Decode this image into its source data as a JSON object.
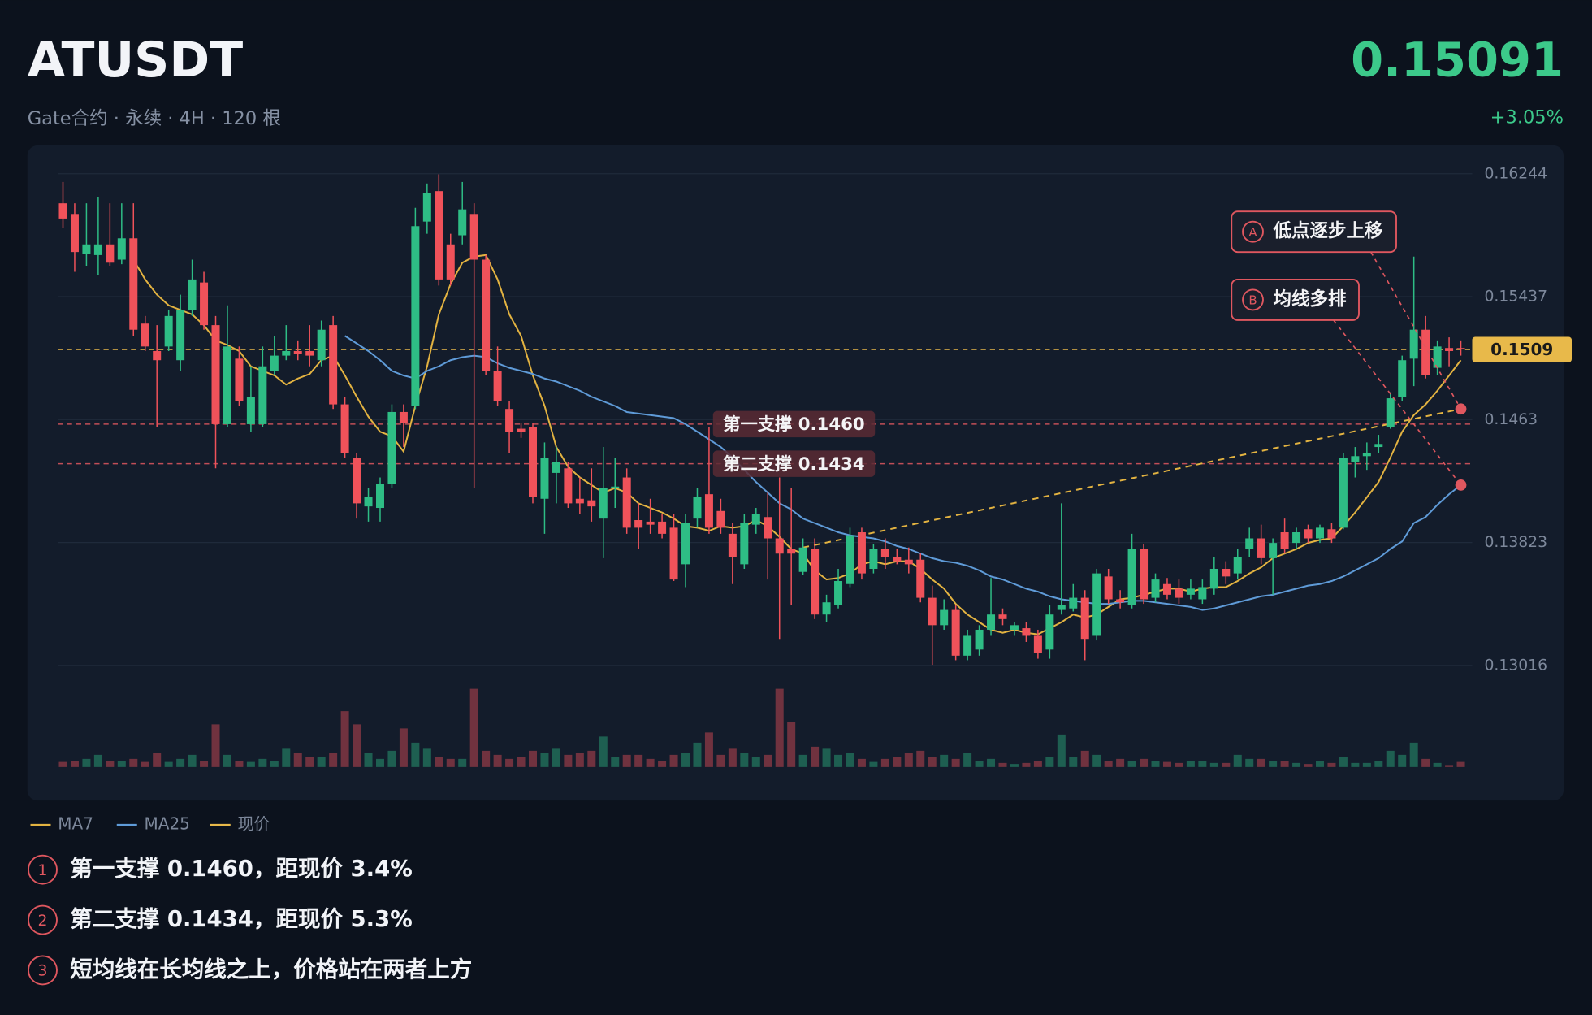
{
  "header": {
    "title": "ATUSDT",
    "subtitle": "Gate合约 · 永续 · 4H · 120 根",
    "price": "0.15091",
    "change": "+3.05%"
  },
  "chart_data": {
    "type": "candlestick",
    "ylim": [
      0.12949,
      0.16317
    ],
    "yticks": [
      0.16244,
      0.15437,
      0.1463,
      0.13823,
      0.13016
    ],
    "grid": true,
    "up_color": "#2ebd85",
    "down_color": "#f0525a",
    "open": [
      0.1605,
      0.1598,
      0.1572,
      0.1571,
      0.1578,
      0.1568,
      0.1582,
      0.1526,
      0.1508,
      0.1511,
      0.1502,
      0.1535,
      0.1553,
      0.1525,
      0.146,
      0.1503,
      0.146,
      0.146,
      0.1495,
      0.1505,
      0.1508,
      0.1508,
      0.1502,
      0.1525,
      0.1473,
      0.1438,
      0.1406,
      0.1405,
      0.1421,
      0.1468,
      0.1472,
      0.1593,
      0.1613,
      0.1578,
      0.1584,
      0.1598,
      0.1568,
      0.1495,
      0.147,
      0.1457,
      0.1458,
      0.1411,
      0.1428,
      0.1431,
      0.1411,
      0.141,
      0.1398,
      0.1418,
      0.1425,
      0.1397,
      0.1396,
      0.1396,
      0.1392,
      0.1368,
      0.1398,
      0.1414,
      0.1403,
      0.1388,
      0.1368,
      0.1394,
      0.1399,
      0.1385,
      0.1378,
      0.1363,
      0.1378,
      0.1335,
      0.1341,
      0.1355,
      0.1389,
      0.1365,
      0.1378,
      0.1373,
      0.1371,
      0.1371,
      0.1346,
      0.1328,
      0.1338,
      0.1308,
      0.1312,
      0.1325,
      0.1335,
      0.1325,
      0.1326,
      0.1321,
      0.1312,
      0.1338,
      0.1339,
      0.1346,
      0.1321,
      0.136,
      0.1345,
      0.1341,
      0.1378,
      0.1346,
      0.1355,
      0.1352,
      0.1348,
      0.1345,
      0.1352,
      0.1365,
      0.1362,
      0.1378,
      0.1385,
      0.1372,
      0.1389,
      0.1382,
      0.1391,
      0.1385,
      0.1391,
      0.1392,
      0.1435,
      0.1439,
      0.1445,
      0.1458,
      0.1478,
      0.1503,
      0.1522,
      0.1497,
      0.151,
      0.151
    ],
    "close": [
      0.1595,
      0.1573,
      0.1578,
      0.1578,
      0.1566,
      0.1582,
      0.1522,
      0.1511,
      0.1502,
      0.1531,
      0.1535,
      0.1555,
      0.1525,
      0.146,
      0.1511,
      0.1475,
      0.1478,
      0.1498,
      0.1505,
      0.1508,
      0.1506,
      0.1505,
      0.1522,
      0.1473,
      0.1441,
      0.1408,
      0.1412,
      0.1421,
      0.1468,
      0.1461,
      0.159,
      0.1612,
      0.1555,
      0.1555,
      0.1601,
      0.1568,
      0.1495,
      0.1475,
      0.1455,
      0.1455,
      0.1412,
      0.1438,
      0.1435,
      0.1408,
      0.1408,
      0.1406,
      0.1418,
      0.1419,
      0.1392,
      0.1392,
      0.1394,
      0.1388,
      0.1358,
      0.1395,
      0.1412,
      0.1392,
      0.1392,
      0.1373,
      0.1395,
      0.1401,
      0.1385,
      0.1375,
      0.1375,
      0.1379,
      0.1335,
      0.1343,
      0.1357,
      0.1387,
      0.1362,
      0.1378,
      0.1373,
      0.137,
      0.1368,
      0.1346,
      0.1328,
      0.1338,
      0.1308,
      0.1321,
      0.1325,
      0.1335,
      0.1332,
      0.1328,
      0.1321,
      0.131,
      0.1335,
      0.1341,
      0.1346,
      0.1319,
      0.1362,
      0.1345,
      0.1343,
      0.1378,
      0.1345,
      0.1358,
      0.1348,
      0.1346,
      0.1352,
      0.1353,
      0.1365,
      0.136,
      0.1373,
      0.1385,
      0.1372,
      0.1382,
      0.1378,
      0.1389,
      0.1385,
      0.1392,
      0.1385,
      0.1438,
      0.1439,
      0.1441,
      0.1447,
      0.1477,
      0.1502,
      0.1522,
      0.1492,
      0.1511,
      0.1508,
      0.15091
    ],
    "high": [
      0.1619,
      0.1605,
      0.1605,
      0.1609,
      0.1605,
      0.1605,
      0.1605,
      0.1531,
      0.1525,
      0.1535,
      0.1545,
      0.1568,
      0.156,
      0.1531,
      0.1538,
      0.1511,
      0.1498,
      0.1511,
      0.1518,
      0.1525,
      0.1515,
      0.1525,
      0.1528,
      0.1531,
      0.1478,
      0.1441,
      0.1418,
      0.1425,
      0.1473,
      0.1473,
      0.1602,
      0.1618,
      0.1624,
      0.1585,
      0.1619,
      0.1605,
      0.1571,
      0.1511,
      0.1475,
      0.1461,
      0.1461,
      0.1448,
      0.1445,
      0.1435,
      0.1425,
      0.1431,
      0.1445,
      0.1438,
      0.1431,
      0.1408,
      0.1411,
      0.1401,
      0.1401,
      0.1401,
      0.1418,
      0.1458,
      0.1411,
      0.1395,
      0.1401,
      0.1405,
      0.1415,
      0.1425,
      0.1418,
      0.1385,
      0.1385,
      0.1348,
      0.1365,
      0.1392,
      0.1392,
      0.1381,
      0.1385,
      0.1378,
      0.1379,
      0.1375,
      0.1354,
      0.1345,
      0.1341,
      0.1325,
      0.1328,
      0.1359,
      0.1339,
      0.133,
      0.133,
      0.1325,
      0.1341,
      0.1408,
      0.1355,
      0.1351,
      0.1365,
      0.1365,
      0.1351,
      0.1388,
      0.1381,
      0.1362,
      0.1359,
      0.1358,
      0.1358,
      0.1358,
      0.1373,
      0.137,
      0.1378,
      0.1392,
      0.1394,
      0.1385,
      0.1398,
      0.1392,
      0.1394,
      0.1394,
      0.1395,
      0.1441,
      0.1445,
      0.1448,
      0.1453,
      0.1481,
      0.1505,
      0.157,
      0.1531,
      0.1515,
      0.1517,
      0.1515
    ],
    "low": [
      0.1589,
      0.156,
      0.1564,
      0.1558,
      0.1564,
      0.1565,
      0.1518,
      0.1508,
      0.1458,
      0.1508,
      0.1495,
      0.1531,
      0.1522,
      0.1431,
      0.1458,
      0.1472,
      0.1455,
      0.1458,
      0.1492,
      0.1502,
      0.1502,
      0.1498,
      0.1498,
      0.147,
      0.1438,
      0.1398,
      0.1396,
      0.1396,
      0.1418,
      0.1445,
      0.147,
      0.1585,
      0.1551,
      0.1551,
      0.1578,
      0.1418,
      0.1492,
      0.1472,
      0.1441,
      0.1451,
      0.1408,
      0.1388,
      0.1408,
      0.1405,
      0.1401,
      0.1396,
      0.1372,
      0.1405,
      0.1388,
      0.1378,
      0.1388,
      0.1385,
      0.1357,
      0.1353,
      0.1392,
      0.1388,
      0.1388,
      0.1355,
      0.1365,
      0.1388,
      0.1358,
      0.1319,
      0.1341,
      0.1361,
      0.1332,
      0.133,
      0.1339,
      0.1353,
      0.1358,
      0.1362,
      0.1365,
      0.1368,
      0.1362,
      0.1343,
      0.1302,
      0.1325,
      0.1305,
      0.1305,
      0.1308,
      0.1321,
      0.1328,
      0.1321,
      0.1317,
      0.1306,
      0.1306,
      0.1335,
      0.1337,
      0.1305,
      0.1318,
      0.1342,
      0.1339,
      0.1339,
      0.1342,
      0.1343,
      0.1345,
      0.1342,
      0.1345,
      0.1342,
      0.1348,
      0.1355,
      0.1358,
      0.1373,
      0.1368,
      0.1348,
      0.1375,
      0.1378,
      0.1382,
      0.1382,
      0.1382,
      0.1391,
      0.1425,
      0.143,
      0.1441,
      0.1457,
      0.1475,
      0.1485,
      0.149,
      0.1492,
      0.1498,
      0.1505
    ],
    "volume": [
      5,
      6,
      8,
      12,
      6,
      6,
      8,
      5,
      14,
      5,
      8,
      12,
      6,
      42,
      12,
      6,
      5,
      8,
      6,
      18,
      14,
      10,
      10,
      14,
      55,
      42,
      14,
      8,
      16,
      38,
      24,
      18,
      10,
      8,
      8,
      77,
      16,
      12,
      8,
      10,
      16,
      14,
      18,
      12,
      14,
      16,
      30,
      10,
      12,
      12,
      8,
      6,
      12,
      14,
      24,
      34,
      12,
      18,
      14,
      10,
      12,
      77,
      44,
      12,
      20,
      18,
      12,
      14,
      8,
      5,
      8,
      10,
      14,
      16,
      10,
      12,
      8,
      14,
      6,
      8,
      4,
      3,
      4,
      6,
      10,
      32,
      10,
      16,
      12,
      6,
      8,
      6,
      8,
      6,
      5,
      4,
      6,
      6,
      4,
      4,
      12,
      8,
      8,
      6,
      6,
      4,
      3,
      6,
      4,
      10,
      4,
      4,
      6,
      16,
      12,
      24,
      8,
      4,
      2,
      5
    ],
    "series": [
      {
        "name": "MA7",
        "color": "#e3b341",
        "values": [
          null,
          null,
          null,
          null,
          null,
          null,
          0.1568,
          0.1555,
          0.1545,
          0.1538,
          0.1535,
          0.1532,
          0.1525,
          0.1515,
          0.1512,
          0.1508,
          0.1498,
          0.1495,
          0.1492,
          0.1486,
          0.149,
          0.1493,
          0.1502,
          0.1505,
          0.1492,
          0.1478,
          0.1465,
          0.1455,
          0.1452,
          0.1442,
          0.1472,
          0.1498,
          0.1532,
          0.1552,
          0.1566,
          0.157,
          0.1571,
          0.1555,
          0.1532,
          0.1518,
          0.1492,
          0.1472,
          0.1445,
          0.1432,
          0.1425,
          0.142,
          0.1415,
          0.1418,
          0.1415,
          0.1408,
          0.1405,
          0.1402,
          0.1398,
          0.1393,
          0.1392,
          0.139,
          0.1393,
          0.1392,
          0.1393,
          0.1397,
          0.1393,
          0.1386,
          0.1378,
          0.1375,
          0.1364,
          0.1358,
          0.1359,
          0.1362,
          0.1368,
          0.137,
          0.1368,
          0.137,
          0.137,
          0.1365,
          0.1358,
          0.1352,
          0.1342,
          0.1335,
          0.133,
          0.1325,
          0.1323,
          0.1325,
          0.1323,
          0.1322,
          0.1326,
          0.133,
          0.1335,
          0.1333,
          0.1335,
          0.134,
          0.1345,
          0.1346,
          0.1348,
          0.135,
          0.1352,
          0.1352,
          0.135,
          0.1352,
          0.1353,
          0.1353,
          0.1357,
          0.1362,
          0.1366,
          0.1372,
          0.1375,
          0.1378,
          0.1382,
          0.1384,
          0.1385,
          0.1393,
          0.1402,
          0.1412,
          0.1422,
          0.1438,
          0.1455,
          0.1466,
          0.1473,
          0.1482,
          0.1492,
          0.1502
        ]
      },
      {
        "name": "MA25",
        "color": "#5f9bd8",
        "values": [
          null,
          null,
          null,
          null,
          null,
          null,
          null,
          null,
          null,
          null,
          null,
          null,
          null,
          null,
          null,
          null,
          null,
          null,
          null,
          null,
          null,
          null,
          null,
          null,
          0.1518,
          0.1513,
          0.1508,
          0.1502,
          0.1495,
          0.1492,
          0.149,
          0.1495,
          0.1498,
          0.1502,
          0.1504,
          0.1505,
          0.1504,
          0.15,
          0.1497,
          0.1495,
          0.1493,
          0.149,
          0.1488,
          0.1485,
          0.1482,
          0.1478,
          0.1475,
          0.1472,
          0.1468,
          0.1467,
          0.1466,
          0.1465,
          0.1464,
          0.146,
          0.1455,
          0.145,
          0.1445,
          0.1438,
          0.143,
          0.1422,
          0.1415,
          0.1408,
          0.1404,
          0.1398,
          0.1395,
          0.1392,
          0.1389,
          0.1387,
          0.1386,
          0.1385,
          0.1383,
          0.138,
          0.1378,
          0.1375,
          0.1372,
          0.137,
          0.1369,
          0.1367,
          0.1364,
          0.136,
          0.1358,
          0.1355,
          0.1352,
          0.135,
          0.1347,
          0.1345,
          0.1344,
          0.1343,
          0.1342,
          0.1342,
          0.1343,
          0.1344,
          0.1344,
          0.1343,
          0.1342,
          0.1341,
          0.134,
          0.1338,
          0.1339,
          0.1341,
          0.1343,
          0.1345,
          0.1347,
          0.1348,
          0.135,
          0.1352,
          0.1354,
          0.1355,
          0.1357,
          0.136,
          0.1364,
          0.1368,
          0.1372,
          0.1378,
          0.1383,
          0.1395,
          0.1399,
          0.1407,
          0.1414,
          0.142
        ]
      }
    ],
    "trendline": {
      "x": [
        63,
        119
      ],
      "values": [
        0.1379,
        0.147
      ],
      "color": "#e3b341"
    },
    "levels": [
      {
        "name": "现价",
        "value": 0.1509,
        "label": "0.1509",
        "color": "#e8b94a"
      },
      {
        "value": 0.146,
        "label": "第一支撑 0.1460",
        "color": "#e0575f"
      },
      {
        "value": 0.1434,
        "label": "第二支撑 0.1434",
        "color": "#e0575f"
      }
    ],
    "annotations": [
      {
        "marker": "A",
        "text": "低点逐步上移"
      },
      {
        "marker": "B",
        "text": "均线多排"
      }
    ]
  },
  "notes": [
    {
      "marker": "1",
      "text": "第一支撑 0.1460，距现价 3.4%"
    },
    {
      "marker": "2",
      "text": "第二支撑 0.1434，距现价 5.3%"
    },
    {
      "marker": "3",
      "text": "短均线在长均线之上，价格站在两者上方"
    }
  ]
}
